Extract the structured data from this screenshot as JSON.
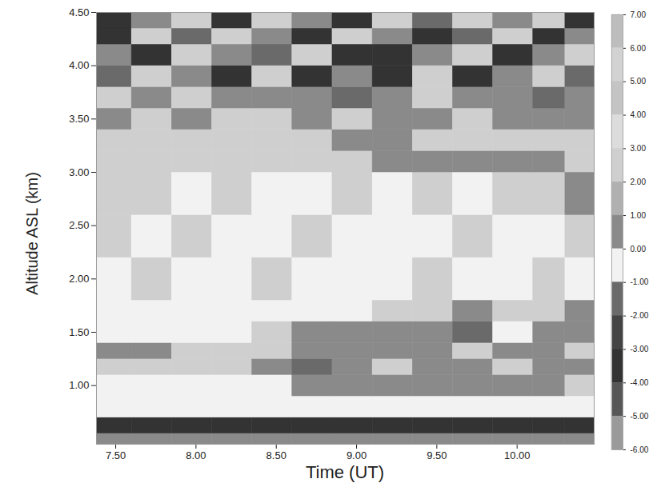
{
  "chart_data": {
    "type": "heatmap",
    "x_label": "Time (UT)",
    "y_label": "Altitude ASL (km)",
    "xlim": [
      7.38,
      10.48
    ],
    "ylim": [
      0.45,
      4.5
    ],
    "xticks": [
      {
        "value": 7.5,
        "label": "7.50"
      },
      {
        "value": 8,
        "label": "8.00"
      },
      {
        "value": 8.5,
        "label": "8.50"
      },
      {
        "value": 9,
        "label": "9.00"
      },
      {
        "value": 9.5,
        "label": "9.50"
      },
      {
        "value": 10,
        "label": "10.00"
      }
    ],
    "yticks": [
      {
        "value": 1,
        "label": "1.00"
      },
      {
        "value": 1.5,
        "label": "1.50"
      },
      {
        "value": 2,
        "label": "2.00"
      },
      {
        "value": 2.5,
        "label": "2.50"
      },
      {
        "value": 3,
        "label": "3.00"
      },
      {
        "value": 3.5,
        "label": "3.50"
      },
      {
        "value": 4,
        "label": "4.00"
      },
      {
        "value": 4.5,
        "label": "4.50"
      }
    ],
    "x": [
      7.38,
      7.6,
      7.85,
      8.1,
      8.35,
      8.6,
      8.85,
      9.1,
      9.35,
      9.6,
      9.85,
      10.1,
      10.3,
      10.48
    ],
    "y": [
      0.45,
      0.55,
      0.7,
      0.9,
      1.1,
      1.25,
      1.4,
      1.6,
      1.8,
      2.2,
      2.6,
      3.0,
      3.2,
      3.4,
      3.6,
      3.8,
      4.0,
      4.2,
      4.35,
      4.5
    ],
    "values": [
      [
        1,
        1,
        1,
        1,
        1,
        1,
        1,
        1,
        1,
        1,
        1,
        1,
        1
      ],
      [
        -3,
        -3,
        -3,
        -3,
        -3,
        -3,
        -3,
        -3,
        -3,
        -3,
        -3,
        -3,
        -3
      ],
      [
        0,
        0,
        0,
        0,
        0,
        0,
        0,
        0,
        0,
        0,
        0,
        0,
        0
      ],
      [
        0,
        0,
        0,
        0,
        0,
        1,
        1,
        1,
        1,
        1,
        1,
        1,
        3
      ],
      [
        3,
        3,
        3,
        3,
        1,
        -1,
        1,
        3,
        1,
        1,
        3,
        1,
        1
      ],
      [
        1,
        1,
        3,
        3,
        3,
        1,
        1,
        1,
        1,
        3,
        1,
        1,
        3
      ],
      [
        0,
        0,
        0,
        0,
        3,
        1,
        1,
        1,
        1,
        -1,
        0,
        1,
        1
      ],
      [
        0,
        0,
        0,
        0,
        0,
        0,
        0,
        3,
        3,
        1,
        3,
        3,
        1
      ],
      [
        0,
        3,
        0,
        0,
        3,
        0,
        0,
        0,
        3,
        0,
        0,
        3,
        0
      ],
      [
        3,
        0,
        3,
        0,
        0,
        3,
        0,
        0,
        0,
        3,
        0,
        0,
        3
      ],
      [
        3,
        3,
        0,
        3,
        0,
        0,
        3,
        0,
        3,
        0,
        3,
        3,
        1
      ],
      [
        3,
        3,
        3,
        3,
        3,
        3,
        3,
        1,
        1,
        1,
        1,
        1,
        3
      ],
      [
        3,
        3,
        3,
        3,
        3,
        3,
        1,
        1,
        3,
        3,
        3,
        3,
        3
      ],
      [
        1,
        3,
        1,
        3,
        3,
        1,
        3,
        1,
        1,
        3,
        1,
        1,
        1
      ],
      [
        3,
        1,
        3,
        1,
        1,
        1,
        -1,
        1,
        3,
        1,
        1,
        -1,
        1
      ],
      [
        -1,
        3,
        1,
        -3,
        3,
        -3,
        1,
        -3,
        3,
        -3,
        1,
        3,
        -1
      ],
      [
        1,
        -3,
        3,
        1,
        -1,
        3,
        -3,
        -3,
        1,
        3,
        -3,
        1,
        3
      ],
      [
        -3,
        3,
        -1,
        3,
        1,
        -3,
        3,
        1,
        -3,
        -1,
        3,
        -3,
        1
      ],
      [
        -3,
        1,
        3,
        -3,
        3,
        1,
        -3,
        3,
        -1,
        3,
        1,
        3,
        -3
      ]
    ],
    "colorbar": {
      "range": [
        -6,
        7
      ],
      "ticks": [
        {
          "value": 7,
          "label": "7.00"
        },
        {
          "value": 6,
          "label": "6.00"
        },
        {
          "value": 5,
          "label": "5.00"
        },
        {
          "value": 4,
          "label": "4.00"
        },
        {
          "value": 3,
          "label": "3.00"
        },
        {
          "value": 2,
          "label": "2.00"
        },
        {
          "value": 1,
          "label": "1.00"
        },
        {
          "value": 0,
          "label": "0.00"
        },
        {
          "value": -1,
          "label": "-1.00"
        },
        {
          "value": -2,
          "label": "-2.00"
        },
        {
          "value": -3,
          "label": "-3.00"
        },
        {
          "value": -4,
          "label": "-4.00"
        },
        {
          "value": -5,
          "label": "-5.00"
        },
        {
          "value": -6,
          "label": "-6.00"
        }
      ]
    }
  }
}
